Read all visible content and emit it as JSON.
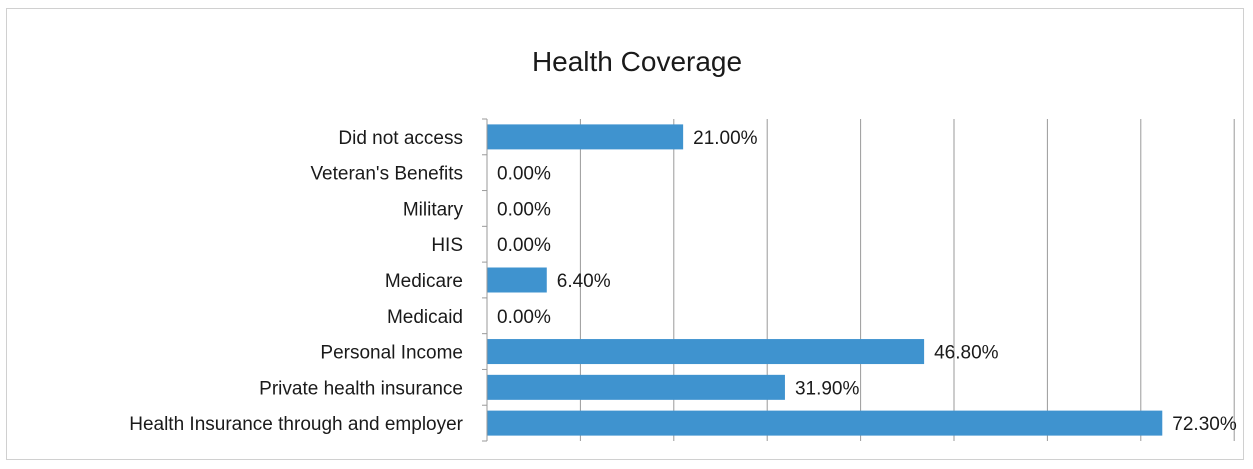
{
  "chart_data": {
    "type": "bar",
    "orientation": "horizontal",
    "title": "Health Coverage",
    "categories": [
      "Did not access",
      "Veteran's Benefits",
      "Military",
      "HIS",
      "Medicare",
      "Medicaid",
      "Personal Income",
      "Private health insurance",
      "Health Insurance through and employer"
    ],
    "values": [
      21.0,
      0.0,
      0.0,
      0.0,
      6.4,
      0.0,
      46.8,
      31.9,
      72.3
    ],
    "data_labels": [
      "21.00%",
      "0.00%",
      "0.00%",
      "0.00%",
      "6.40%",
      "0.00%",
      "46.80%",
      "31.90%",
      "72.30%"
    ],
    "xlim": [
      0,
      80
    ],
    "x_gridline_step": 10,
    "grid": true,
    "legend": "none",
    "bar_color": "#3f93cf",
    "gridline_color": "#9a9a9a",
    "axis_color": "#9a9a9a"
  }
}
